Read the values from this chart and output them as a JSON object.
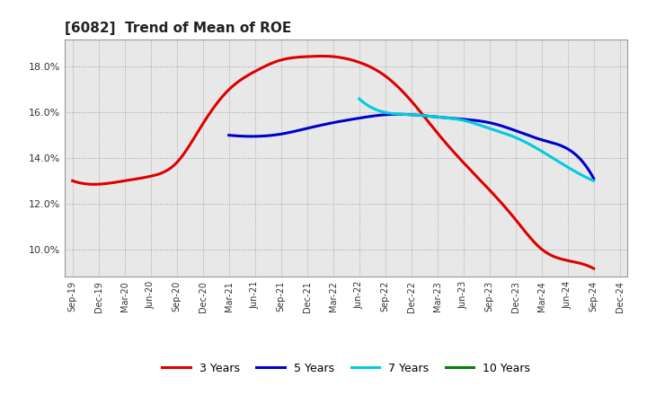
{
  "title": "[6082]  Trend of Mean of ROE",
  "background_color": "#ffffff",
  "plot_bg_color": "#e8e8e8",
  "grid_color": "#999999",
  "x_tick_labels": [
    "Sep-19",
    "Dec-19",
    "Mar-20",
    "Jun-20",
    "Sep-20",
    "Dec-20",
    "Mar-21",
    "Jun-21",
    "Sep-21",
    "Dec-21",
    "Mar-22",
    "Jun-22",
    "Sep-22",
    "Dec-22",
    "Mar-23",
    "Jun-23",
    "Sep-23",
    "Dec-23",
    "Mar-24",
    "Jun-24",
    "Sep-24",
    "Dec-24"
  ],
  "series": {
    "3 Years": {
      "color": "#dd0000",
      "values": [
        0.13,
        0.1285,
        0.13,
        0.132,
        0.138,
        0.155,
        0.17,
        0.178,
        0.183,
        0.1845,
        0.1845,
        0.182,
        0.176,
        0.165,
        0.151,
        0.138,
        0.126,
        0.113,
        0.1,
        0.095,
        0.0915,
        null
      ]
    },
    "5 Years": {
      "color": "#0000cc",
      "values": [
        null,
        null,
        null,
        null,
        null,
        null,
        0.15,
        0.1495,
        0.1505,
        0.153,
        0.1555,
        0.1575,
        0.159,
        0.159,
        0.158,
        0.157,
        0.1555,
        0.152,
        0.148,
        0.144,
        0.131,
        null
      ]
    },
    "7 Years": {
      "color": "#00ccdd",
      "values": [
        null,
        null,
        null,
        null,
        null,
        null,
        null,
        null,
        null,
        null,
        null,
        0.166,
        0.16,
        0.159,
        0.158,
        0.1565,
        0.153,
        0.149,
        0.143,
        0.136,
        0.13,
        null
      ]
    },
    "10 Years": {
      "color": "#008000",
      "values": [
        null,
        null,
        null,
        null,
        null,
        null,
        null,
        null,
        null,
        null,
        null,
        null,
        null,
        null,
        null,
        null,
        null,
        null,
        null,
        null,
        null,
        null
      ]
    }
  },
  "ylim": [
    0.088,
    0.192
  ],
  "yticks": [
    0.1,
    0.12,
    0.14,
    0.16,
    0.18
  ],
  "legend_labels": [
    "3 Years",
    "5 Years",
    "7 Years",
    "10 Years"
  ],
  "legend_colors": [
    "#dd0000",
    "#0000cc",
    "#00ccdd",
    "#008000"
  ]
}
